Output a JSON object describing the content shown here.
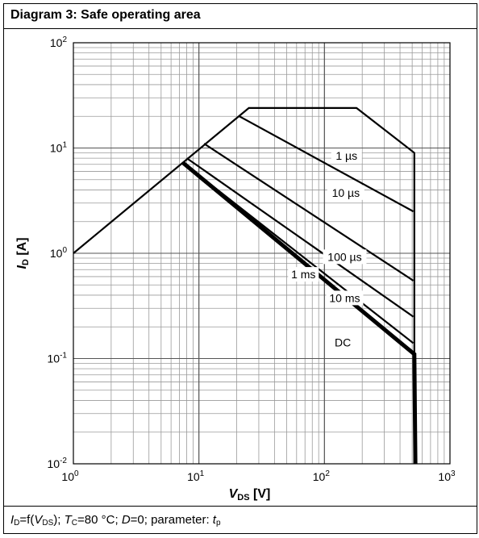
{
  "panel": {
    "title": "Diagram 3: Safe operating area",
    "caption": {
      "id_sym": "I",
      "id_sub": "D",
      "eq": "=f(",
      "vds_sym": "V",
      "vds_sub": "DS",
      "close": ");",
      "tc_sym": "T",
      "tc_sub": "C",
      "tc_val": "=80 °C;",
      "d_sym": "D",
      "d_val": "=0; parameter:",
      "tp_sym": "t",
      "tp_sub": "p"
    }
  },
  "chart_data": {
    "type": "line",
    "xscale": "log",
    "yscale": "log",
    "xlim": [
      1,
      1000
    ],
    "ylim": [
      0.01,
      100
    ],
    "grid": true,
    "xlabel": {
      "sym": "V",
      "sub": "DS",
      "unit": " [V]"
    },
    "ylabel": {
      "sym": "I",
      "sub": "D",
      "unit": " [A]"
    },
    "xticks": [
      {
        "base": "10",
        "exp": "0"
      },
      {
        "base": "10",
        "exp": "1"
      },
      {
        "base": "10",
        "exp": "2"
      },
      {
        "base": "10",
        "exp": "3"
      }
    ],
    "yticks": [
      {
        "base": "10",
        "exp": "-2"
      },
      {
        "base": "10",
        "exp": "-1"
      },
      {
        "base": "10",
        "exp": "0"
      },
      {
        "base": "10",
        "exp": "1"
      },
      {
        "base": "10",
        "exp": "2"
      }
    ],
    "series": [
      {
        "name": "1 µs",
        "x": [
          1,
          25,
          180,
          520,
          520
        ],
        "y": [
          1,
          24,
          24,
          9,
          0.01
        ]
      },
      {
        "name": "10 µs",
        "x": [
          21,
          510
        ],
        "y": [
          20,
          2.5
        ]
      },
      {
        "name": "100 µs",
        "x": [
          11,
          510
        ],
        "y": [
          11,
          0.55
        ]
      },
      {
        "name": "1 ms",
        "x": [
          8,
          510
        ],
        "y": [
          8,
          0.25
        ]
      },
      {
        "name": "10 ms",
        "x": [
          7.5,
          510
        ],
        "y": [
          7.2,
          0.14
        ]
      },
      {
        "name": "DC",
        "x": [
          7.5,
          520,
          530
        ],
        "y": [
          7.2,
          0.11,
          0.01
        ]
      }
    ],
    "annotations": [
      {
        "text": "1 µs",
        "x": 150,
        "y": 8.3
      },
      {
        "text": "10 µs",
        "x": 148,
        "y": 3.7
      },
      {
        "text": "100 µs",
        "x": 145,
        "y": 0.91
      },
      {
        "text": "1 ms",
        "x": 68,
        "y": 0.62
      },
      {
        "text": "10 ms",
        "x": 145,
        "y": 0.37
      },
      {
        "text": "DC",
        "x": 140,
        "y": 0.14
      }
    ]
  }
}
